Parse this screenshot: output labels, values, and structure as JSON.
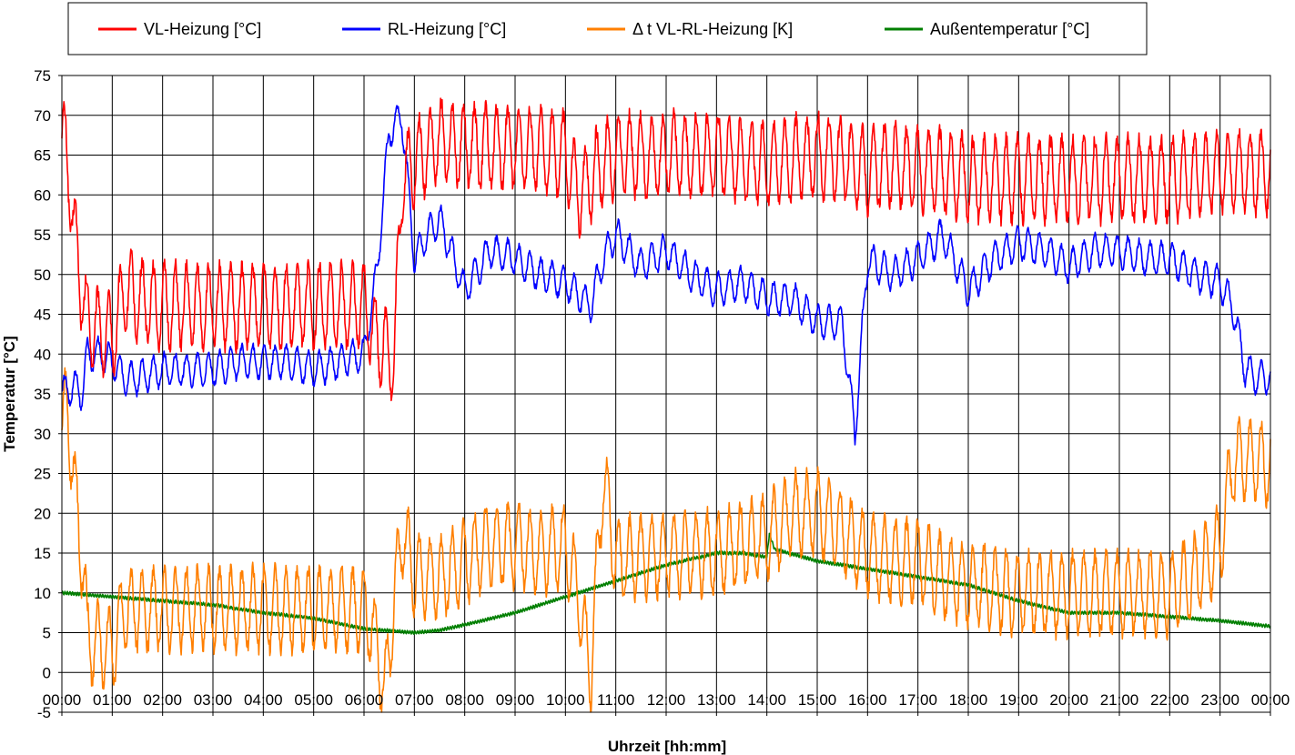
{
  "chart_data": {
    "type": "line",
    "xlabel": "Uhrzeit [hh:mm]",
    "ylabel": "Temperatur [°C]",
    "ylim": [
      -5,
      75
    ],
    "yticks": [
      -5,
      0,
      5,
      10,
      15,
      20,
      25,
      30,
      35,
      40,
      45,
      50,
      55,
      60,
      65,
      70,
      75
    ],
    "xlim": [
      0,
      24
    ],
    "xtick_labels": [
      "00:00",
      "01:00",
      "02:00",
      "03:00",
      "04:00",
      "05:00",
      "06:00",
      "07:00",
      "08:00",
      "09:00",
      "10:00",
      "11:00",
      "12:00",
      "13:00",
      "14:00",
      "15:00",
      "16:00",
      "17:00",
      "18:00",
      "19:00",
      "20:00",
      "21:00",
      "22:00",
      "23:00",
      "00:00"
    ],
    "grid": true,
    "legend_position": "top",
    "series": [
      {
        "name": "VL-Heizung [°C]",
        "color": "#ff0000",
        "oscillation_amplitude": 5,
        "x": [
          0,
          0.05,
          0.15,
          0.3,
          0.45,
          0.5,
          1.0,
          1.25,
          1.5,
          2.0,
          2.5,
          3.0,
          3.5,
          4.0,
          4.5,
          5.0,
          5.5,
          6.0,
          6.25,
          6.5,
          6.6,
          6.75,
          7.0,
          7.5,
          8.0,
          9.0,
          10.0,
          10.25,
          10.5,
          10.75,
          11.0,
          12.0,
          13.0,
          14.0,
          15.0,
          15.75,
          16.0,
          16.5,
          17.0,
          17.5,
          18.0,
          19.0,
          20.0,
          21.0,
          21.5,
          22.0,
          23.0,
          24.0
        ],
        "y": [
          68,
          66,
          62,
          52,
          46,
          44,
          42,
          48,
          47,
          46,
          46,
          46,
          46,
          46,
          46,
          46,
          46,
          46,
          42,
          40,
          39,
          62,
          64,
          67,
          66,
          66,
          65,
          60,
          62,
          64,
          65,
          65,
          65,
          64,
          65,
          64,
          63,
          64,
          63,
          63,
          62,
          62,
          62,
          62,
          62,
          62,
          63,
          63
        ]
      },
      {
        "name": "RL-Heizung [°C]",
        "color": "#0000ff",
        "oscillation_amplitude": 2,
        "x": [
          0,
          0.25,
          0.4,
          0.5,
          0.75,
          1.0,
          1.25,
          1.5,
          2.0,
          2.5,
          3.0,
          3.5,
          4.0,
          4.5,
          5.0,
          5.5,
          6.0,
          6.25,
          6.5,
          6.75,
          7.0,
          7.25,
          7.5,
          8.0,
          8.5,
          9.0,
          9.5,
          10.0,
          10.5,
          10.75,
          11.0,
          11.5,
          12.0,
          12.5,
          13.0,
          13.5,
          14.0,
          14.5,
          15.0,
          15.5,
          15.75,
          16.0,
          16.5,
          17.0,
          17.5,
          18.0,
          18.5,
          19.0,
          19.5,
          20.0,
          20.5,
          21.0,
          21.5,
          22.0,
          22.5,
          23.0,
          23.25,
          23.5,
          23.75,
          24.0
        ],
        "y": [
          35,
          36,
          35,
          40,
          40,
          39,
          37,
          37,
          38,
          38,
          38,
          39,
          39,
          39,
          38,
          39,
          40,
          50,
          68,
          70,
          52,
          55,
          57,
          48,
          53,
          52,
          50,
          49,
          46,
          52,
          55,
          51,
          53,
          50,
          48,
          49,
          47,
          47,
          44,
          44,
          30,
          52,
          50,
          52,
          55,
          48,
          52,
          54,
          53,
          51,
          53,
          53,
          52,
          52,
          50,
          49,
          46,
          38,
          37,
          37
        ]
      },
      {
        "name": "Δ t VL-RL-Heizung [K]",
        "color": "#ff7f00",
        "oscillation_amplitude": 5,
        "x": [
          0,
          0.1,
          0.3,
          0.45,
          0.5,
          1.0,
          1.25,
          2.0,
          3.0,
          4.0,
          5.0,
          6.0,
          6.25,
          6.4,
          6.75,
          7.0,
          7.5,
          8.0,
          8.5,
          9.0,
          9.5,
          10.0,
          10.25,
          10.5,
          10.75,
          11.0,
          12.0,
          13.0,
          14.0,
          14.5,
          15.0,
          15.5,
          15.75,
          16.0,
          16.5,
          17.0,
          17.5,
          18.0,
          19.0,
          20.0,
          21.0,
          22.0,
          22.5,
          23.0,
          23.25,
          23.5,
          24.0
        ],
        "y": [
          30,
          34,
          20,
          12,
          4,
          3,
          8,
          8,
          8,
          8,
          8,
          8,
          4,
          -3,
          18,
          12,
          12,
          14,
          16,
          16,
          15,
          16,
          10,
          0,
          25,
          14,
          15,
          15,
          17,
          20,
          20,
          18,
          16,
          15,
          14,
          14,
          12,
          11,
          10,
          10,
          10,
          10,
          12,
          16,
          26,
          27,
          26
        ]
      },
      {
        "name": "Außentemperatur [°C]",
        "color": "#007f00",
        "oscillation_amplitude": 0.2,
        "x": [
          0,
          1,
          2,
          3,
          4,
          5,
          6,
          7,
          7.5,
          8,
          9,
          10,
          10.5,
          11,
          12,
          13,
          13.5,
          14,
          14.05,
          14.15,
          15,
          15.5,
          16,
          17,
          18,
          19,
          20,
          21,
          22,
          23,
          24
        ],
        "y": [
          10,
          9.5,
          9,
          8.5,
          7.5,
          6.8,
          5.5,
          5,
          5.3,
          6,
          7.5,
          9.5,
          10.5,
          11.5,
          13.5,
          15,
          15,
          14.5,
          17.5,
          15.5,
          14,
          13.5,
          13,
          12,
          11,
          9,
          7.5,
          7.5,
          7,
          6.5,
          5.8
        ]
      }
    ]
  }
}
